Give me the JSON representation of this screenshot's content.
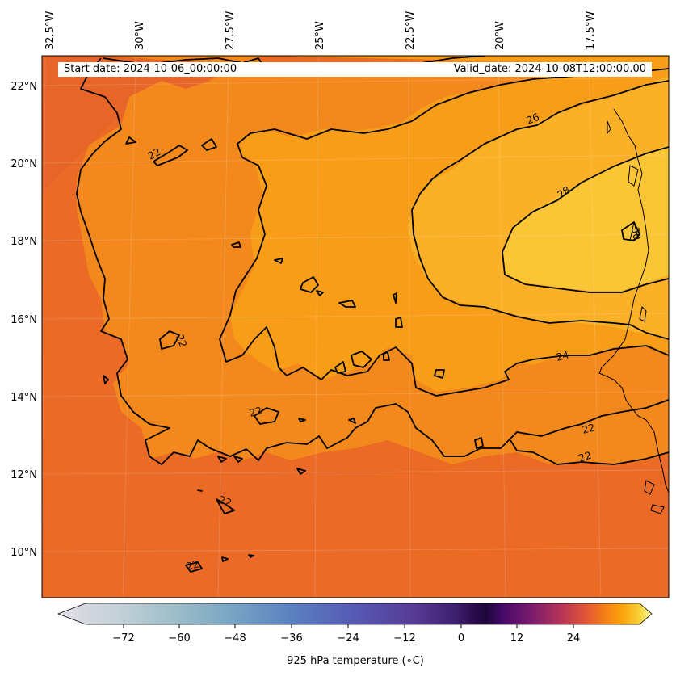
{
  "map": {
    "variable_label": "925 hPa temperature (∘C)",
    "start_date": "Start date: 2024-10-06_00:00:00",
    "valid_date": "Valid_date: 2024-10-08T12:00:00.00",
    "longitude_labels": [
      "32.5°W",
      "30°W",
      "27.5°W",
      "25°W",
      "22.5°W",
      "20°W",
      "17.5°W"
    ],
    "latitude_labels": [
      "22°N",
      "20°N",
      "18°N",
      "16°N",
      "14°N",
      "12°N",
      "10°N"
    ],
    "contour_labels": [
      "22",
      "22",
      "22",
      "22",
      "22",
      "22",
      "22",
      "22",
      "24",
      "26",
      "28",
      "30"
    ],
    "colorbar_ticks": [
      "−72",
      "−60",
      "−48",
      "−36",
      "−24",
      "−12",
      "0",
      "12",
      "24"
    ],
    "colormap": "inferno",
    "colors": {
      "background_field": "#ea6a26",
      "warm_22_24": "#f3881c",
      "warm_24_26": "#f79d18",
      "warm_26_28": "#fab127",
      "warm_28_30": "#fbc635",
      "coastline": "#000000",
      "contour": "#000000"
    }
  }
}
